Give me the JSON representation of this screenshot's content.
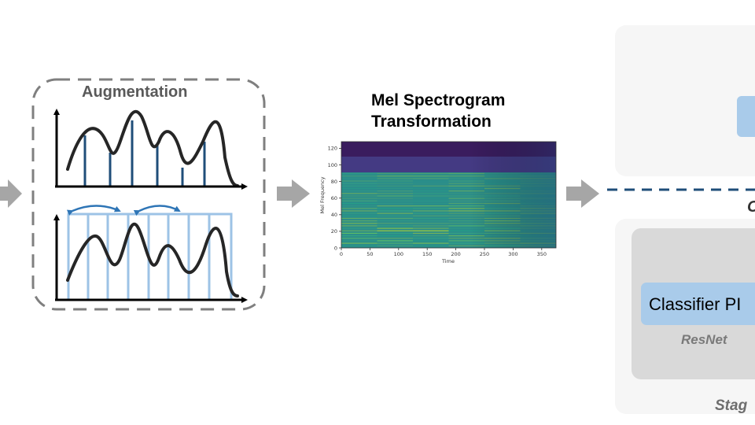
{
  "augmentation": {
    "title": "Augmentation"
  },
  "mel_spectrogram": {
    "title_line1": "Mel Spectrogram",
    "title_line2": "Transformation",
    "xlabel": "Time",
    "ylabel": "Mel Frequency",
    "x_ticks": [
      "0",
      "50",
      "100",
      "150",
      "200",
      "250",
      "300",
      "350"
    ],
    "y_ticks": [
      "0",
      "20",
      "40",
      "60",
      "80",
      "100",
      "120"
    ]
  },
  "stage_panel": {
    "classifier_label": "Classifier PI",
    "model_label": "ResNet",
    "stage_label": "Stag",
    "partial_label": "C"
  },
  "colors": {
    "arrow": "#a6a6a6",
    "dashed_border": "#7f7f7f",
    "wave": "#262626",
    "sample_line": "#1f4e79",
    "window": "#9dc3e6",
    "swap_arrow": "#2e75b6",
    "separator": "#1f4e79",
    "panel_bg": "#f6f6f6",
    "inner_panel": "#d9d9d9",
    "classifier": "#a9cbea"
  },
  "icons": [
    "flow-arrow-icon",
    "swap-arrow-icon"
  ]
}
